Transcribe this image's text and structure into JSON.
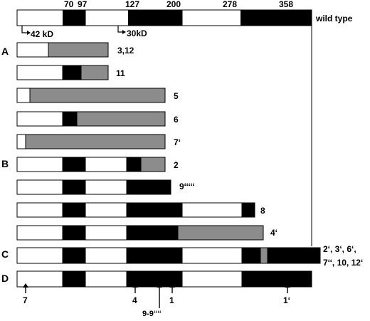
{
  "colors": {
    "white": "#ffffff",
    "black": "#000000",
    "gray": "#8c8c8c"
  },
  "positions": [
    "70",
    "97",
    "127",
    "200",
    "278",
    "358"
  ],
  "wild_type_label": "wild type",
  "start_labels": [
    "42 kD",
    "30kD"
  ],
  "group_labels": [
    "A",
    "B",
    "C",
    "D"
  ],
  "clone_labels": [
    "3,12",
    "11",
    "5",
    "6",
    "7‘",
    "2",
    "9‘‘‘‘‘",
    "8",
    "4‘",
    "2‘, 3‘, 6‘,",
    "7‘‘, 10, 12‘"
  ],
  "arrow_labels": [
    "7",
    "4",
    "9-9‘‘‘‘",
    "1",
    "1‘"
  ]
}
